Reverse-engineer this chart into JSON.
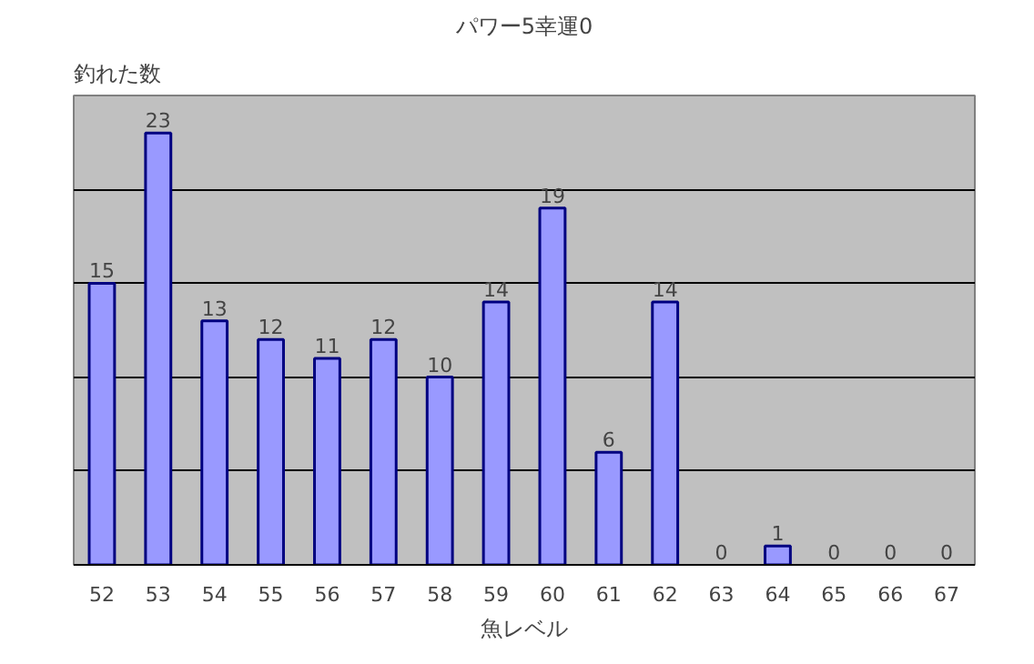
{
  "chart_data": {
    "type": "bar",
    "title": "パワー5幸運0",
    "xlabel": "魚レベル",
    "ylabel": "釣れた数",
    "categories": [
      "52",
      "53",
      "54",
      "55",
      "56",
      "57",
      "58",
      "59",
      "60",
      "61",
      "62",
      "63",
      "64",
      "65",
      "66",
      "67"
    ],
    "values": [
      15,
      23,
      13,
      12,
      11,
      12,
      10,
      14,
      19,
      6,
      14,
      0,
      1,
      0,
      0,
      0
    ],
    "color": "#9999ff",
    "ylim": [
      0,
      25
    ],
    "yticks": [
      {
        "value": 0,
        "label": null
      },
      {
        "value": 5,
        "label": null
      },
      {
        "value": 10,
        "label": null
      },
      {
        "value": 15,
        "label": null
      },
      {
        "value": 20,
        "label": null
      },
      {
        "value": 25,
        "label": null
      }
    ],
    "grid": "y",
    "tick_labels": "x",
    "data_labels": true
  }
}
